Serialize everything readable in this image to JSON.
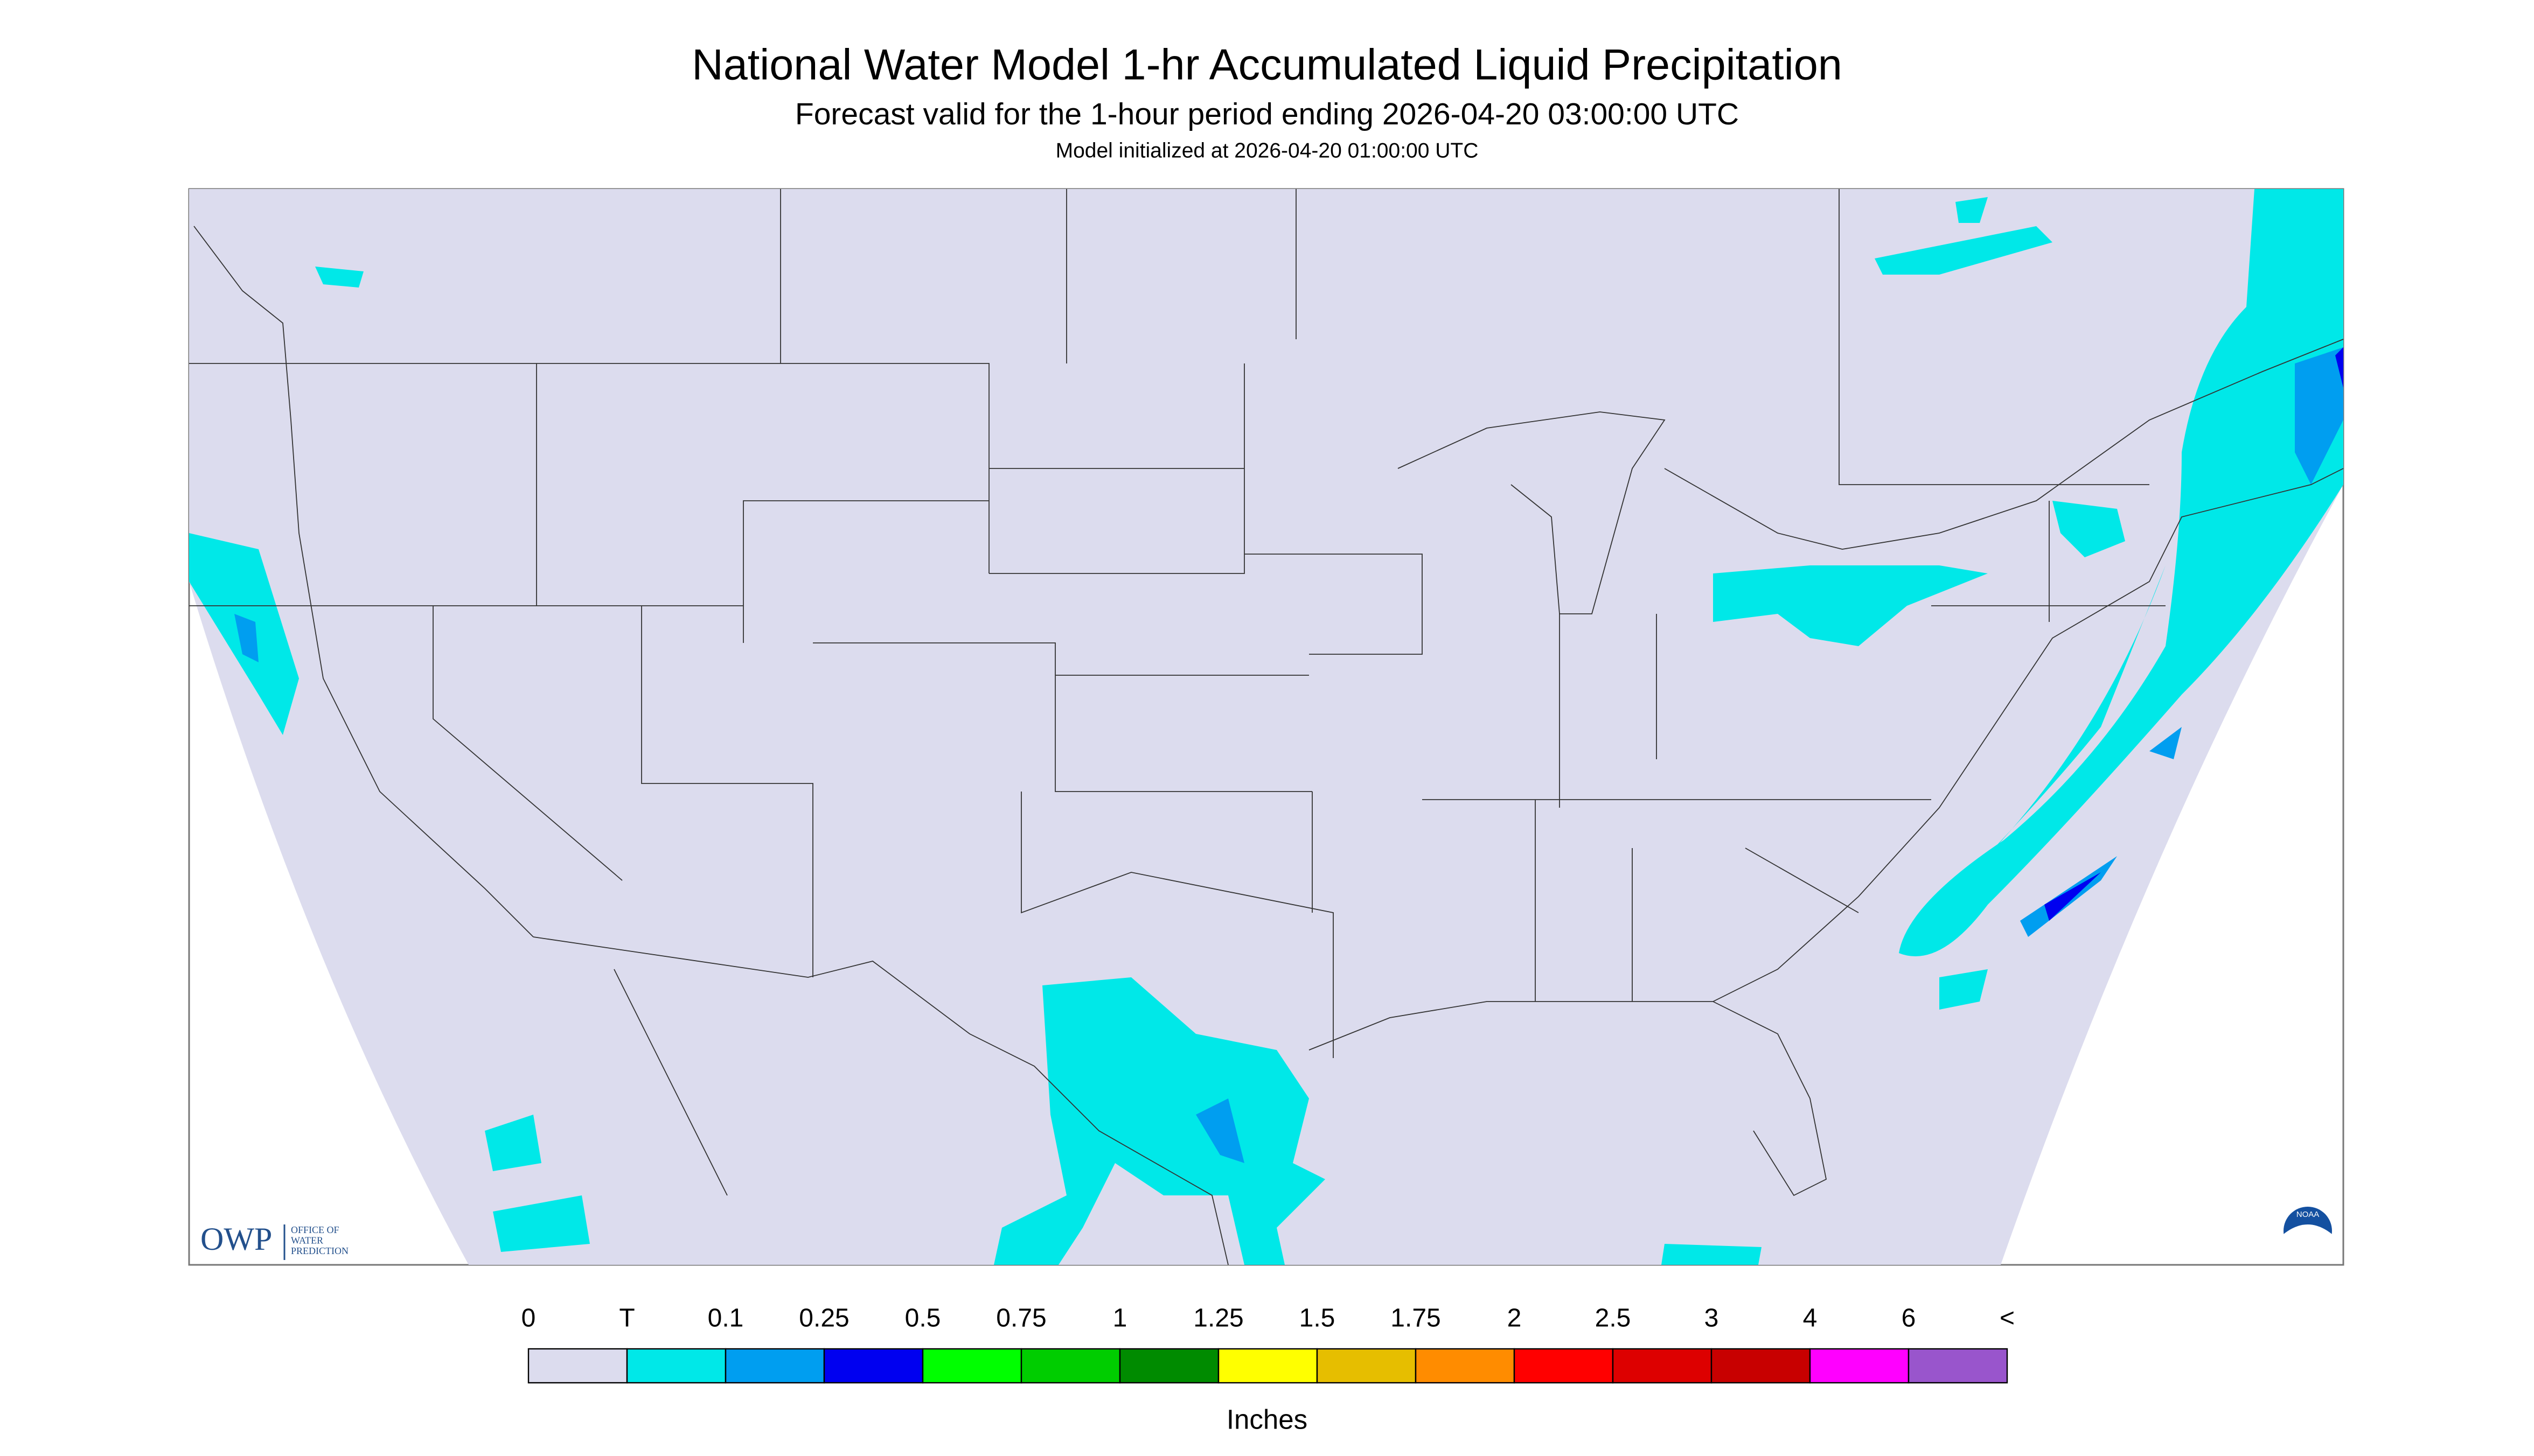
{
  "header": {
    "title": "National Water Model 1-hr Accumulated Liquid Precipitation",
    "subtitle": "Forecast valid for the 1-hour period ending 2026-04-20 03:00:00 UTC",
    "note": "Model initialized at 2026-04-20 01:00:00 UTC"
  },
  "logos": {
    "owp": "OWP",
    "owp_text": [
      "OFFICE OF",
      "WATER",
      "PREDICTION"
    ],
    "noaa": "NOAA"
  },
  "legend": {
    "labels": [
      "0",
      "T",
      "0.1",
      "0.25",
      "0.5",
      "0.75",
      "1",
      "1.25",
      "1.5",
      "1.75",
      "2",
      "2.5",
      "3",
      "4",
      "6",
      "<"
    ],
    "colors": [
      "#dcdcee",
      "#00e8e8",
      "#009ef0",
      "#0000f0",
      "#00ff00",
      "#00cd00",
      "#008b00",
      "#ffff00",
      "#e6be00",
      "#ff8c00",
      "#ff0000",
      "#dd0000",
      "#c80000",
      "#ff00ff",
      "#9955cc"
    ],
    "unit": "Inches"
  }
}
